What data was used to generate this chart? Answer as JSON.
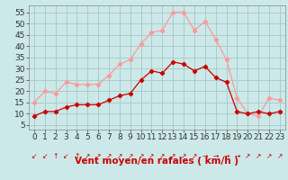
{
  "hours": [
    0,
    1,
    2,
    3,
    4,
    5,
    6,
    7,
    8,
    9,
    10,
    11,
    12,
    13,
    14,
    15,
    16,
    17,
    18,
    19,
    20,
    21,
    22,
    23
  ],
  "wind_avg": [
    9,
    11,
    11,
    13,
    14,
    14,
    14,
    16,
    18,
    19,
    25,
    29,
    28,
    33,
    32,
    29,
    31,
    26,
    24,
    11,
    10,
    11,
    10,
    11
  ],
  "wind_gust": [
    15,
    20,
    19,
    24,
    23,
    23,
    23,
    27,
    32,
    34,
    41,
    46,
    47,
    55,
    55,
    47,
    51,
    43,
    34,
    17,
    10,
    9,
    17,
    16
  ],
  "color_avg": "#cc0000",
  "color_gust": "#ff9999",
  "bg_color": "#cce8e8",
  "grid_color": "#aacccc",
  "xlabel": "Vent moyen/en rafales ( km/h )",
  "xlabel_color": "#cc0000",
  "yticks": [
    5,
    10,
    15,
    20,
    25,
    30,
    35,
    40,
    45,
    50,
    55
  ],
  "ylim": [
    3,
    58
  ],
  "xlim": [
    -0.5,
    23.5
  ],
  "tick_fontsize": 6.5,
  "label_fontsize": 7.5,
  "arrows": [
    "↙",
    "↙",
    "↑",
    "↙",
    "↑",
    "↗",
    "↗",
    "↗",
    "↗",
    "↗",
    "↗",
    "↗",
    "↗",
    "↗",
    "↗",
    "↗",
    "→",
    "→",
    "→",
    "→",
    "↗",
    "↗",
    "↗",
    "↗"
  ]
}
